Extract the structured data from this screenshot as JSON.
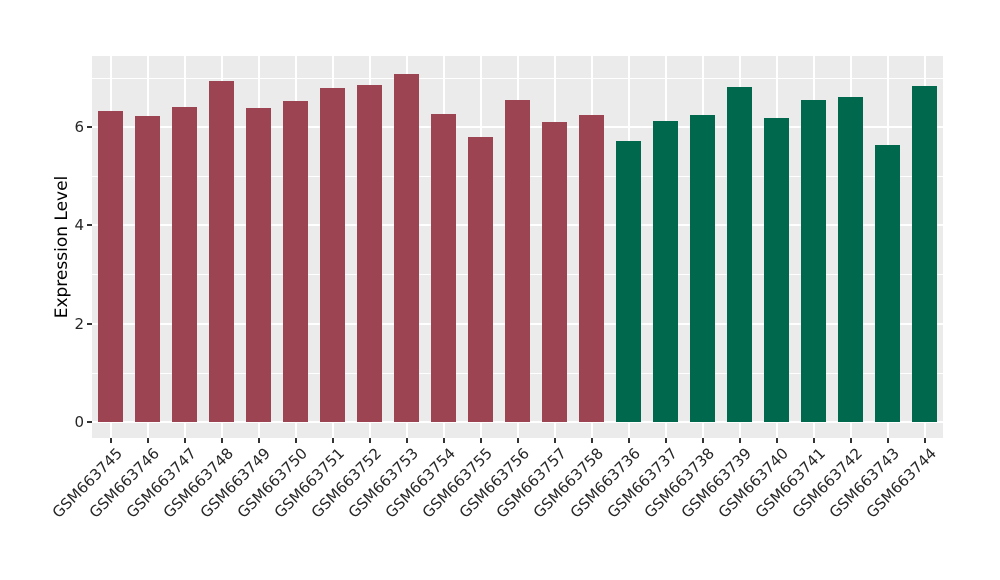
{
  "chart_data": {
    "type": "bar",
    "title": "",
    "xlabel": "",
    "ylabel": "Expression Level",
    "ylim": [
      0,
      7.44
    ],
    "yticks": [
      0,
      2,
      4,
      6
    ],
    "minor_yticks": [
      1,
      3,
      5,
      7
    ],
    "grid": "major and minor horizontal white gridlines, vertical white gridlines at each category center",
    "legend_position": "none",
    "panel_bg": "#ebebeb",
    "grid_color": "#ffffff",
    "group_colors": {
      "left_group": "#9d4452",
      "right_group": "#00684d"
    },
    "categories": [
      "GSM663745",
      "GSM663746",
      "GSM663747",
      "GSM663748",
      "GSM663749",
      "GSM663750",
      "GSM663751",
      "GSM663752",
      "GSM663753",
      "GSM663754",
      "GSM663755",
      "GSM663756",
      "GSM663757",
      "GSM663758",
      "GSM663736",
      "GSM663737",
      "GSM663738",
      "GSM663739",
      "GSM663740",
      "GSM663741",
      "GSM663742",
      "GSM663743",
      "GSM663744"
    ],
    "values": [
      6.33,
      6.21,
      6.4,
      6.94,
      6.38,
      6.53,
      6.78,
      6.84,
      7.07,
      6.27,
      5.79,
      6.54,
      6.1,
      6.23,
      5.71,
      6.12,
      6.24,
      6.8,
      6.18,
      6.55,
      6.6,
      5.64,
      6.82
    ],
    "bar_colors": [
      "#9d4452",
      "#9d4452",
      "#9d4452",
      "#9d4452",
      "#9d4452",
      "#9d4452",
      "#9d4452",
      "#9d4452",
      "#9d4452",
      "#9d4452",
      "#9d4452",
      "#9d4452",
      "#9d4452",
      "#9d4452",
      "#00684d",
      "#00684d",
      "#00684d",
      "#00684d",
      "#00684d",
      "#00684d",
      "#00684d",
      "#00684d",
      "#00684d"
    ]
  }
}
